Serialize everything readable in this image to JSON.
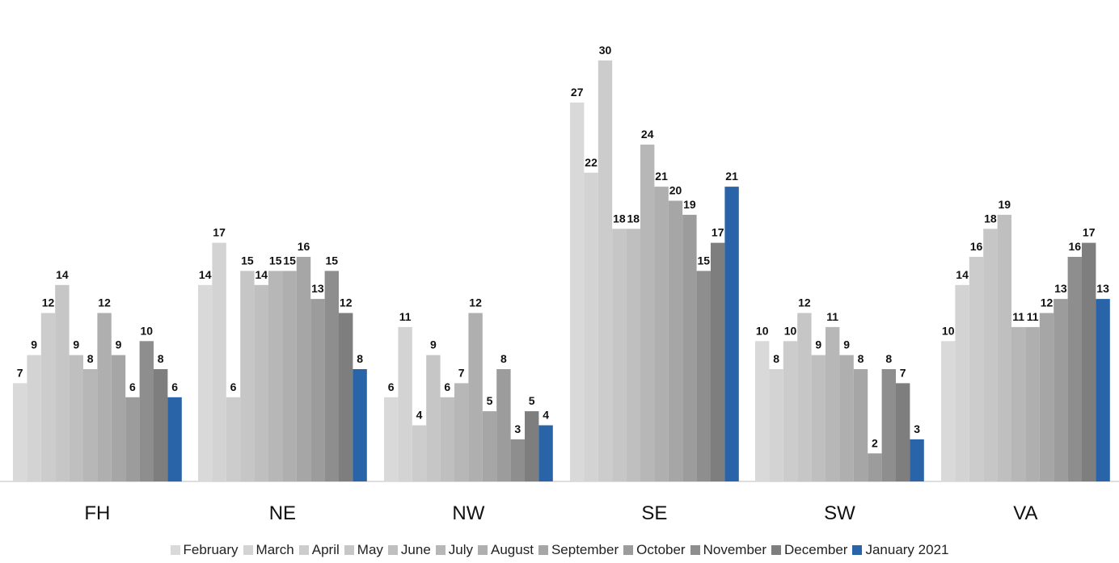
{
  "chart_data": {
    "type": "bar",
    "categories": [
      "FH",
      "NE",
      "NW",
      "SE",
      "SW",
      "VA"
    ],
    "series": [
      {
        "name": "February",
        "color": "#d9d9d9",
        "values": [
          7,
          14,
          6,
          27,
          10,
          10
        ]
      },
      {
        "name": "March",
        "color": "#d3d3d3",
        "values": [
          9,
          17,
          11,
          22,
          8,
          14
        ]
      },
      {
        "name": "April",
        "color": "#cccccc",
        "values": [
          12,
          6,
          4,
          30,
          10,
          16
        ]
      },
      {
        "name": "May",
        "color": "#c6c6c6",
        "values": [
          14,
          15,
          9,
          18,
          12,
          18
        ]
      },
      {
        "name": "June",
        "color": "#bfbfbf",
        "values": [
          9,
          14,
          6,
          18,
          9,
          19
        ]
      },
      {
        "name": "July",
        "color": "#b7b7b7",
        "values": [
          8,
          15,
          7,
          24,
          11,
          11
        ]
      },
      {
        "name": "August",
        "color": "#afafaf",
        "values": [
          12,
          15,
          12,
          21,
          9,
          11
        ]
      },
      {
        "name": "September",
        "color": "#a6a6a6",
        "values": [
          9,
          16,
          5,
          20,
          8,
          12
        ]
      },
      {
        "name": "October",
        "color": "#9c9c9c",
        "values": [
          6,
          13,
          8,
          19,
          2,
          13
        ]
      },
      {
        "name": "November",
        "color": "#8e8e8e",
        "values": [
          10,
          15,
          3,
          15,
          8,
          16
        ]
      },
      {
        "name": "December",
        "color": "#7e7e7e",
        "values": [
          8,
          12,
          5,
          17,
          7,
          17
        ]
      },
      {
        "name": "January 2021",
        "color": "#2a64a8",
        "values": [
          6,
          8,
          4,
          21,
          3,
          13
        ]
      }
    ],
    "title": "",
    "xlabel": "",
    "ylabel": "",
    "ylim": [
      0,
      32
    ],
    "grid": false,
    "legend_position": "bottom",
    "show_data_labels": true
  }
}
